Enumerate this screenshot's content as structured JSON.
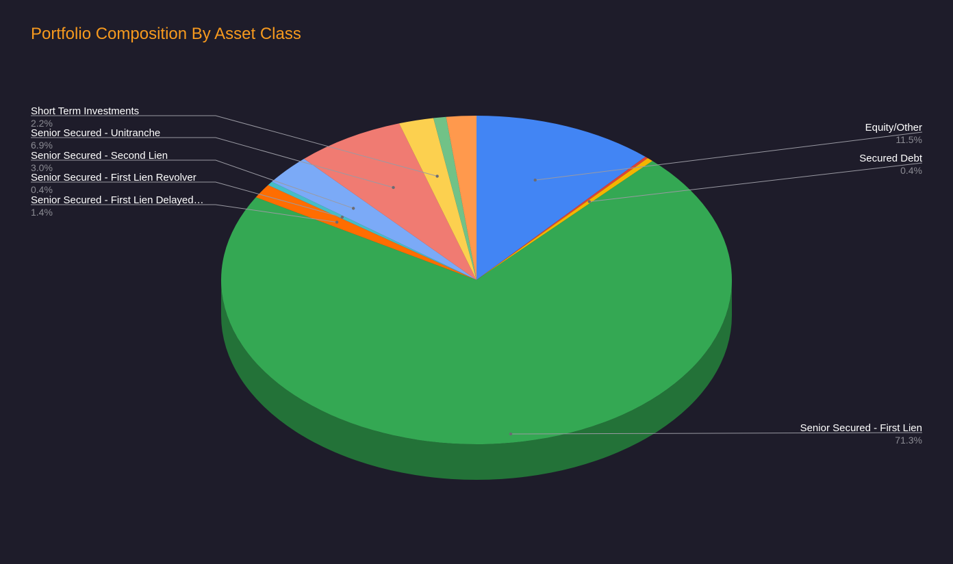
{
  "chart_data": {
    "type": "pie",
    "style": "3d",
    "title": "Portfolio Composition By Asset Class",
    "title_color": "#f79a1e",
    "background": "#1e1c2a",
    "slices": [
      {
        "label": "Equity/Other",
        "value": 11.5,
        "value_label": "11.5%",
        "color": "#4285f4",
        "legend": true
      },
      {
        "label": "",
        "value": 0.2,
        "value_label": "",
        "color": "#db4437",
        "legend": false
      },
      {
        "label": "Secured Debt",
        "value": 0.4,
        "value_label": "0.4%",
        "color": "#f4b400",
        "legend": true
      },
      {
        "label": "Senior Secured - First Lien",
        "value": 71.3,
        "value_label": "71.3%",
        "color": "#34a853",
        "legend": true
      },
      {
        "label": "Senior Secured - First Lien Delayed…",
        "value": 1.4,
        "value_label": "1.4%",
        "color": "#ff6d01",
        "legend": true
      },
      {
        "label": "Senior Secured - First Lien Revolver",
        "value": 0.4,
        "value_label": "0.4%",
        "color": "#46bdc6",
        "legend": true
      },
      {
        "label": "Senior Secured - Second Lien",
        "value": 3.0,
        "value_label": "3.0%",
        "color": "#7baaf7",
        "legend": true
      },
      {
        "label": "Senior Secured - Unitranche",
        "value": 6.9,
        "value_label": "6.9%",
        "color": "#f07b72",
        "legend": true
      },
      {
        "label": "Short Term Investments",
        "value": 2.2,
        "value_label": "2.2%",
        "color": "#fcd04f",
        "legend": true
      },
      {
        "label": "",
        "value": 0.8,
        "value_label": "",
        "color": "#71c287",
        "legend": false
      },
      {
        "label": "",
        "value": 1.9,
        "value_label": "",
        "color": "#ff994d",
        "legend": false
      }
    ],
    "legend_placement": "callouts"
  }
}
